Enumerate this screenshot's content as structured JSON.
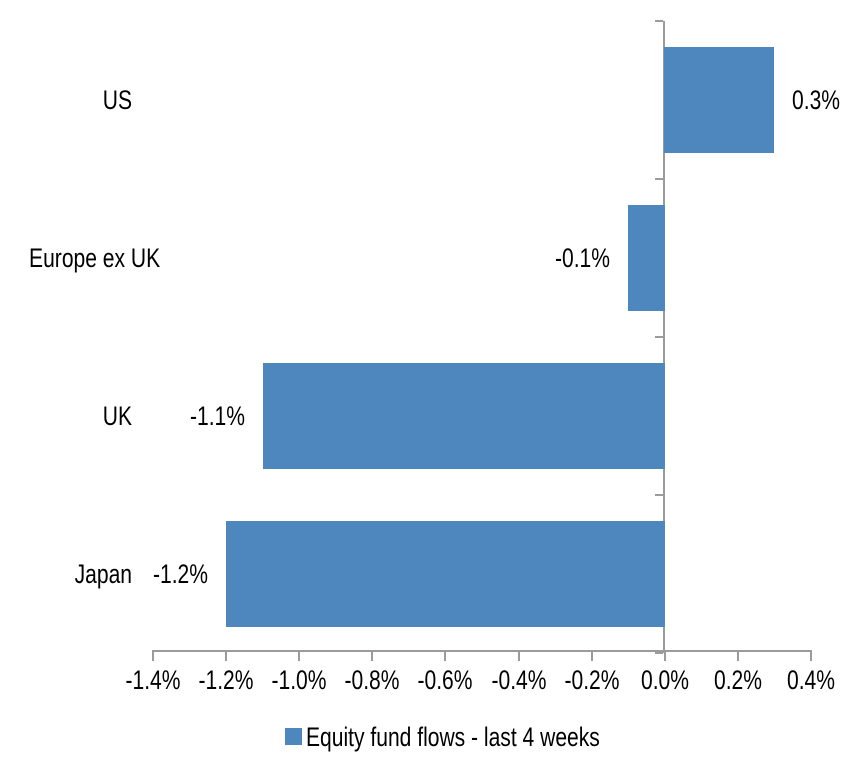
{
  "chart_data": {
    "type": "bar",
    "orientation": "horizontal",
    "title": "",
    "xlabel": "",
    "ylabel": "",
    "categories": [
      "US",
      "Europe ex UK",
      "UK",
      "Japan"
    ],
    "series": [
      {
        "name": "Equity fund flows - last 4 weeks",
        "values": [
          0.3,
          -0.1,
          -1.1,
          -1.2
        ],
        "value_labels": [
          "0.3%",
          "-0.1%",
          "-1.1%",
          "-1.2%"
        ]
      }
    ],
    "xlim": [
      -1.4,
      0.4
    ],
    "x_tick_values": [
      -1.4,
      -1.2,
      -1.0,
      -0.8,
      -0.6,
      -0.4,
      -0.2,
      0.0,
      0.2,
      0.4
    ],
    "x_tick_labels": [
      "-1.4%",
      "-1.2%",
      "-1.0%",
      "-0.8%",
      "-0.6%",
      "-0.4%",
      "-0.2%",
      "0.0%",
      "0.2%",
      "0.4%"
    ],
    "grid": false,
    "legend_position": "bottom",
    "legend_label": "Equity fund flows - last 4 weeks",
    "bar_color": "#4E86BE",
    "axis_color": "#9B9B9B",
    "text_color": "#000000",
    "background_color": "#FFFFFF"
  }
}
